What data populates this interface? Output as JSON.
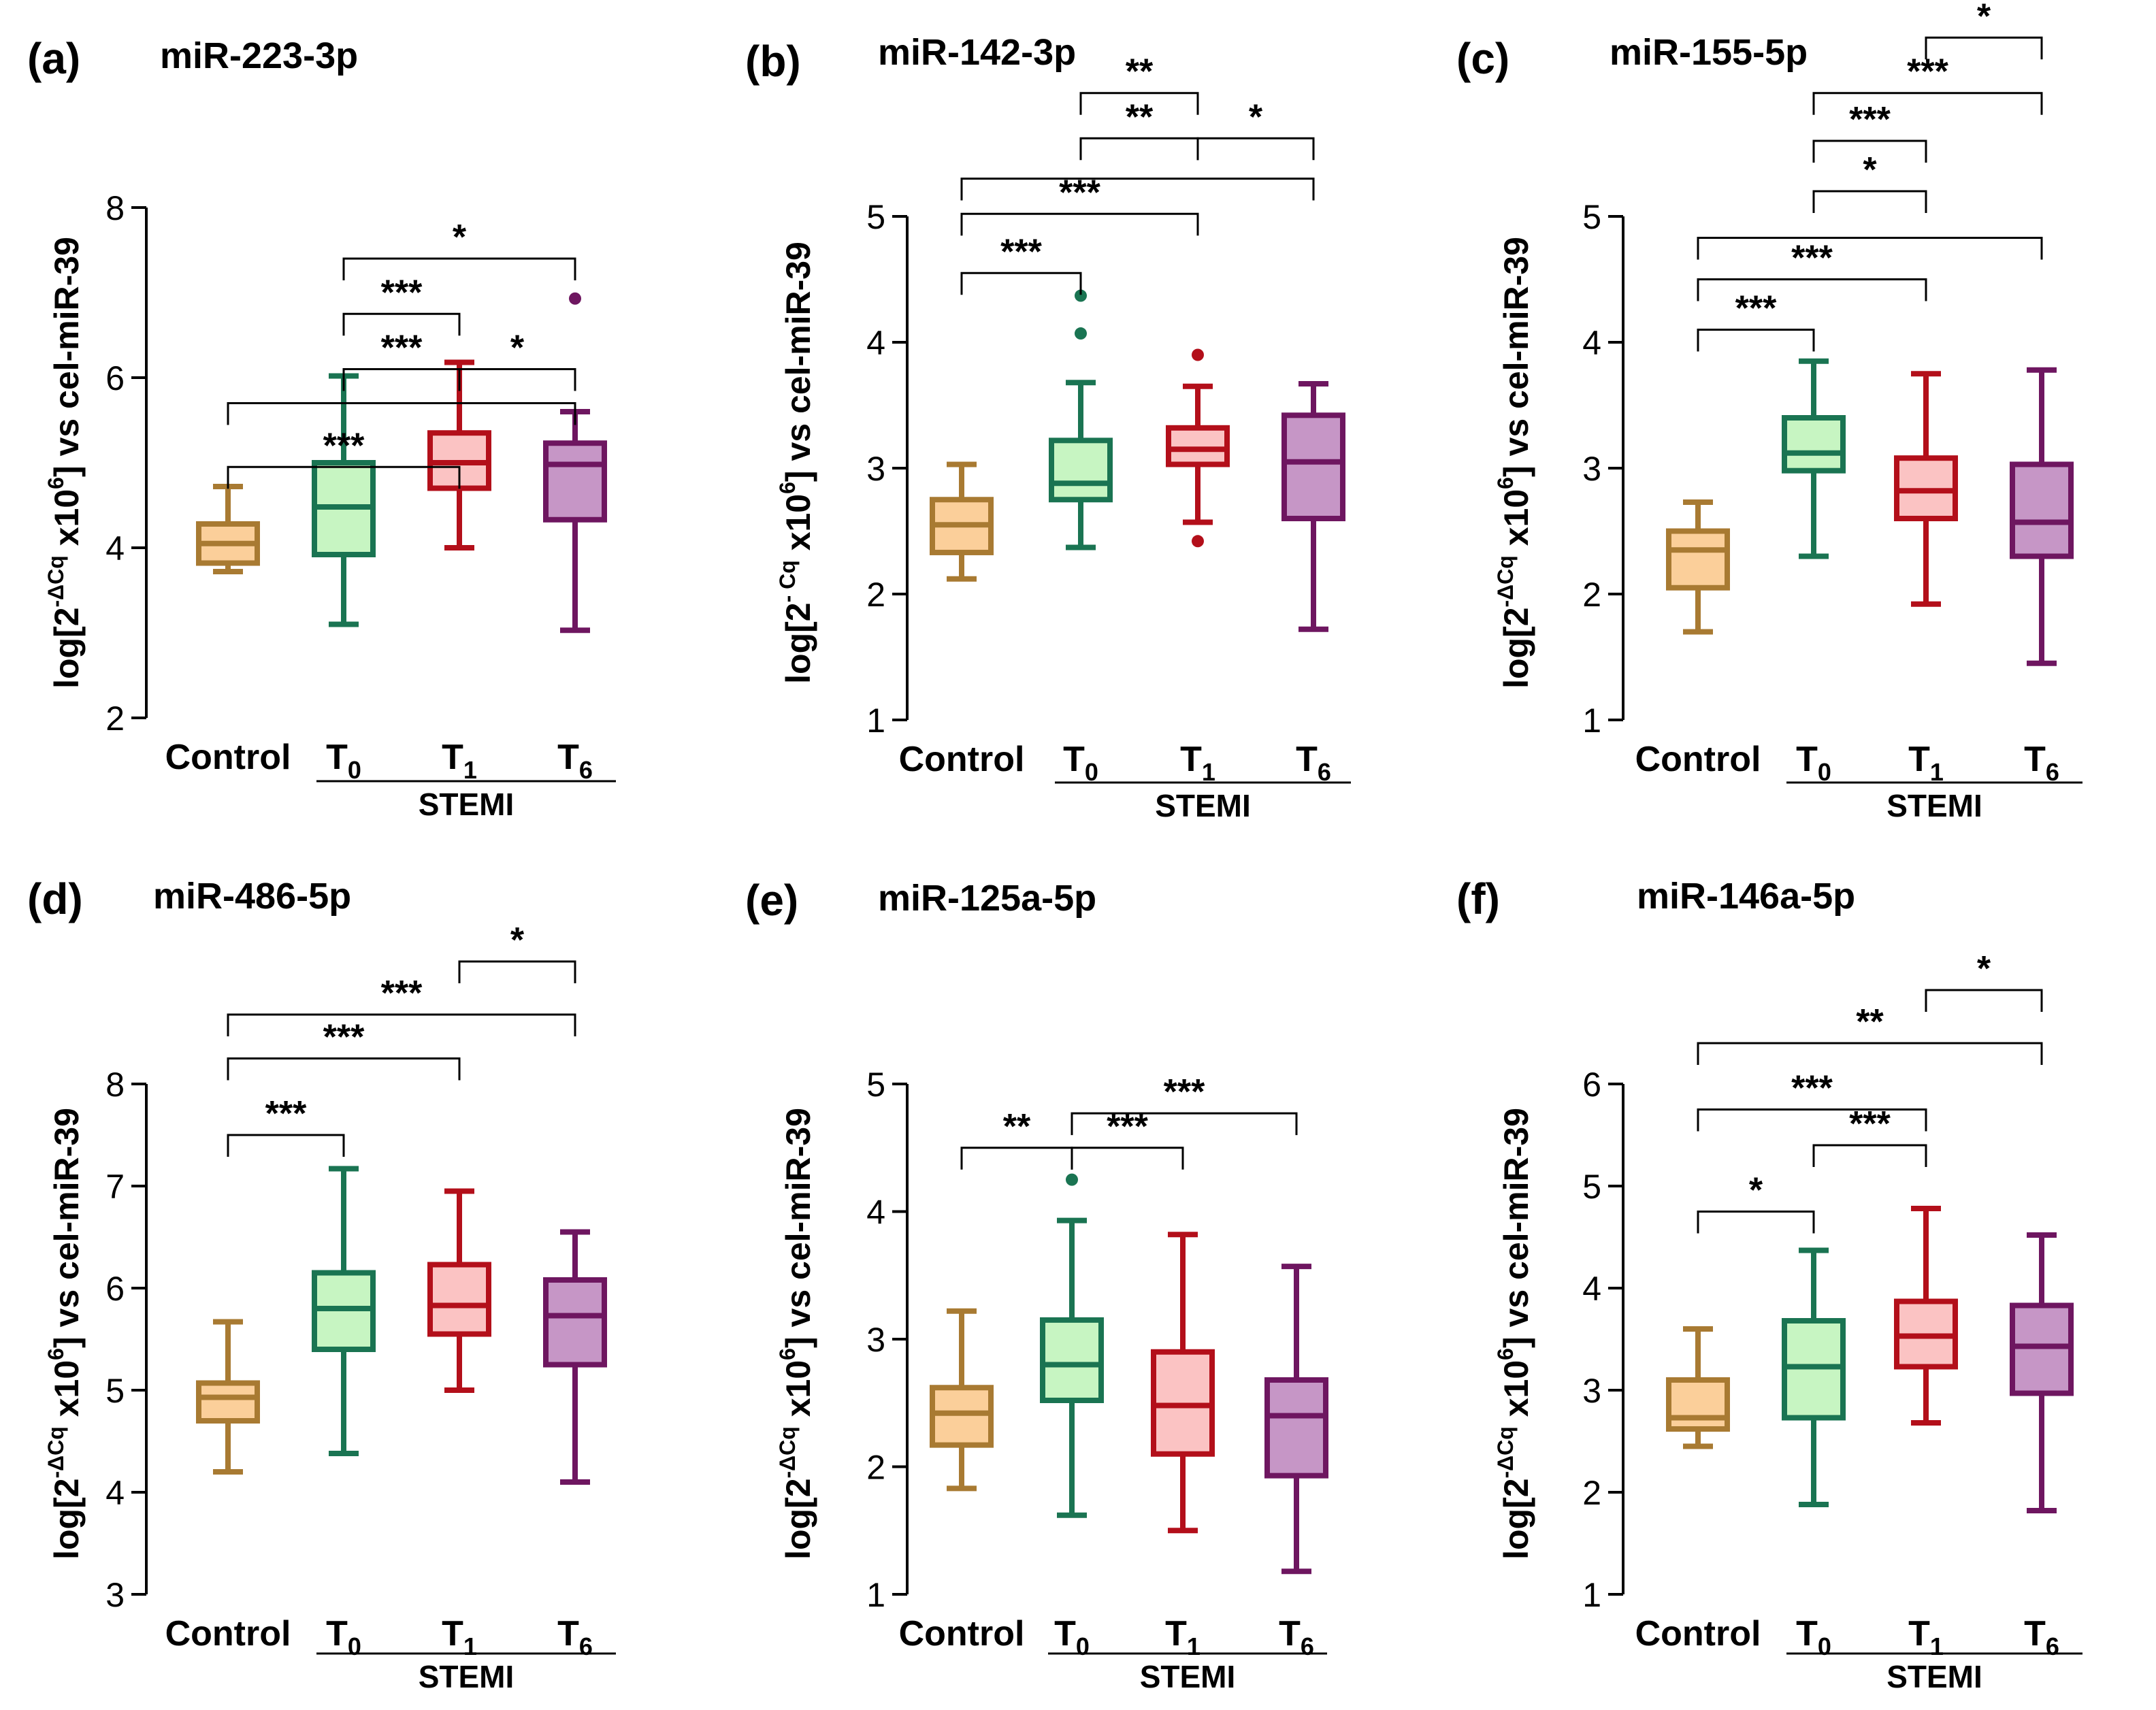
{
  "figure": {
    "group_label": "STEMI"
  },
  "colors": {
    "axis": "#000000",
    "bracket": "#000000",
    "groups": [
      {
        "stroke": "#a87a32",
        "fill": "#fbcf9a"
      },
      {
        "stroke": "#1a7452",
        "fill": "#c7f5c2"
      },
      {
        "stroke": "#b30f1a",
        "fill": "#fbc3c3"
      },
      {
        "stroke": "#6e1660",
        "fill": "#c696c6"
      }
    ]
  },
  "chart_data": [
    {
      "panel": "(a)",
      "title": "miR-223-3p",
      "type": "box",
      "ylabel": {
        "pre": "log[2",
        "sup": "-ΔCq",
        "mid": " x10",
        "sup2": "6",
        "post": "] vs cel-miR-39"
      },
      "ylim": [
        2,
        8
      ],
      "yticks": [
        "2",
        "4",
        "6",
        "8"
      ],
      "categories": [
        {
          "base": "Control",
          "sub": ""
        },
        {
          "base": "T",
          "sub": "0"
        },
        {
          "base": "T",
          "sub": "1"
        },
        {
          "base": "T",
          "sub": "6"
        }
      ],
      "boxes": [
        {
          "min": 3.72,
          "q1": 3.82,
          "median": 4.05,
          "q3": 4.28,
          "max": 4.72,
          "outliers": []
        },
        {
          "min": 3.1,
          "q1": 3.92,
          "median": 4.48,
          "q3": 5.0,
          "max": 6.02,
          "outliers": []
        },
        {
          "min": 4.0,
          "q1": 4.7,
          "median": 5.0,
          "q3": 5.35,
          "max": 6.18,
          "outliers": []
        },
        {
          "min": 3.03,
          "q1": 4.33,
          "median": 4.98,
          "q3": 5.23,
          "max": 5.6,
          "outliers": [
            6.93
          ]
        }
      ],
      "comparisons": [
        {
          "from": 0,
          "to": 2,
          "level": 4.95,
          "label": "***"
        },
        {
          "from": 0,
          "to": 3,
          "level": 5.7,
          "label": ""
        },
        {
          "from": 1,
          "to": 2,
          "level": 6.1,
          "label": "***"
        },
        {
          "from": 2,
          "to": 3,
          "level": 6.1,
          "label": "*"
        },
        {
          "from": 1,
          "to": 2,
          "level": 6.75,
          "label": "***"
        },
        {
          "from": 1,
          "to": 3,
          "level": 7.4,
          "label": "*"
        }
      ]
    },
    {
      "panel": "(b)",
      "title": "miR-142-3p",
      "type": "box",
      "ylabel": {
        "pre": "log[2",
        "sup": "- Cq",
        "mid": " x10",
        "sup2": "6",
        "post": "] vs cel-miR-39"
      },
      "ylim": [
        1,
        5
      ],
      "yticks": [
        "1",
        "2",
        "3",
        "4",
        "5"
      ],
      "categories": [
        {
          "base": "Control",
          "sub": ""
        },
        {
          "base": "T",
          "sub": "0"
        },
        {
          "base": "T",
          "sub": "1"
        },
        {
          "base": "T",
          "sub": "6"
        }
      ],
      "boxes": [
        {
          "min": 2.12,
          "q1": 2.33,
          "median": 2.55,
          "q3": 2.75,
          "max": 3.03,
          "outliers": []
        },
        {
          "min": 2.37,
          "q1": 2.75,
          "median": 2.88,
          "q3": 3.22,
          "max": 3.68,
          "outliers": [
            4.07,
            4.37
          ]
        },
        {
          "min": 2.57,
          "q1": 3.03,
          "median": 3.15,
          "q3": 3.32,
          "max": 3.65,
          "outliers": [
            2.42,
            3.9
          ]
        },
        {
          "min": 1.72,
          "q1": 2.6,
          "median": 3.05,
          "q3": 3.42,
          "max": 3.67,
          "outliers": []
        }
      ],
      "comparisons": [
        {
          "from": 0,
          "to": 1,
          "level": 4.55,
          "label": "***"
        },
        {
          "from": 0,
          "to": 2,
          "level": 5.02,
          "label": "***"
        },
        {
          "from": 0,
          "to": 3,
          "level": 5.3,
          "label": ""
        },
        {
          "from": 1,
          "to": 2,
          "level": 5.62,
          "label": "**"
        },
        {
          "from": 2,
          "to": 3,
          "level": 5.62,
          "label": "*"
        },
        {
          "from": 1,
          "to": 2,
          "level": 5.98,
          "label": "**"
        }
      ]
    },
    {
      "panel": "(c)",
      "title": "miR-155-5p",
      "type": "box",
      "ylabel": {
        "pre": "log[2",
        "sup": "-ΔCq",
        "mid": " x10",
        "sup2": "6",
        "post": "] vs cel-miR-39"
      },
      "ylim": [
        1,
        5
      ],
      "yticks": [
        "1",
        "2",
        "3",
        "4",
        "5"
      ],
      "categories": [
        {
          "base": "Control",
          "sub": ""
        },
        {
          "base": "T",
          "sub": "0"
        },
        {
          "base": "T",
          "sub": "1"
        },
        {
          "base": "T",
          "sub": "6"
        }
      ],
      "boxes": [
        {
          "min": 1.7,
          "q1": 2.05,
          "median": 2.35,
          "q3": 2.5,
          "max": 2.73,
          "outliers": []
        },
        {
          "min": 2.3,
          "q1": 2.98,
          "median": 3.12,
          "q3": 3.4,
          "max": 3.85,
          "outliers": []
        },
        {
          "min": 1.92,
          "q1": 2.6,
          "median": 2.82,
          "q3": 3.08,
          "max": 3.75,
          "outliers": []
        },
        {
          "min": 1.45,
          "q1": 2.3,
          "median": 2.57,
          "q3": 3.03,
          "max": 3.78,
          "outliers": []
        }
      ],
      "comparisons": [
        {
          "from": 0,
          "to": 1,
          "level": 4.1,
          "label": "***"
        },
        {
          "from": 0,
          "to": 2,
          "level": 4.5,
          "label": "***"
        },
        {
          "from": 0,
          "to": 3,
          "level": 4.83,
          "label": ""
        },
        {
          "from": 1,
          "to": 2,
          "level": 5.2,
          "label": "*"
        },
        {
          "from": 1,
          "to": 2,
          "level": 5.6,
          "label": "***"
        },
        {
          "from": 1,
          "to": 3,
          "level": 5.98,
          "label": "***"
        },
        {
          "from": 2,
          "to": 3,
          "level": 6.42,
          "label": "*"
        }
      ]
    },
    {
      "panel": "(d)",
      "title": "miR-486-5p",
      "type": "box",
      "ylabel": {
        "pre": "log[2",
        "sup": "-ΔCq",
        "mid": " x10",
        "sup2": "6",
        "post": "] vs cel-miR-39"
      },
      "ylim": [
        3,
        8
      ],
      "yticks": [
        "3",
        "4",
        "5",
        "6",
        "7",
        "8"
      ],
      "categories": [
        {
          "base": "Control",
          "sub": ""
        },
        {
          "base": "T",
          "sub": "0"
        },
        {
          "base": "T",
          "sub": "1"
        },
        {
          "base": "T",
          "sub": "6"
        }
      ],
      "boxes": [
        {
          "min": 4.2,
          "q1": 4.7,
          "median": 4.93,
          "q3": 5.07,
          "max": 5.67,
          "outliers": []
        },
        {
          "min": 4.38,
          "q1": 5.4,
          "median": 5.8,
          "q3": 6.15,
          "max": 7.17,
          "outliers": []
        },
        {
          "min": 5.0,
          "q1": 5.55,
          "median": 5.83,
          "q3": 6.23,
          "max": 6.95,
          "outliers": []
        },
        {
          "min": 4.1,
          "q1": 5.25,
          "median": 5.73,
          "q3": 6.08,
          "max": 6.55,
          "outliers": []
        }
      ],
      "comparisons": [
        {
          "from": 0,
          "to": 1,
          "level": 7.5,
          "label": "***"
        },
        {
          "from": 0,
          "to": 2,
          "level": 8.25,
          "label": "***"
        },
        {
          "from": 0,
          "to": 3,
          "level": 8.68,
          "label": "***"
        },
        {
          "from": 2,
          "to": 3,
          "level": 9.2,
          "label": "*"
        }
      ]
    },
    {
      "panel": "(e)",
      "title": "miR-125a-5p",
      "type": "box",
      "ylabel": {
        "pre": "log[2",
        "sup": "-ΔCq",
        "mid": " x10",
        "sup2": "6",
        "post": "] vs cel-miR-39"
      },
      "ylim": [
        1,
        5
      ],
      "yticks": [
        "1",
        "2",
        "3",
        "4",
        "5"
      ],
      "categories": [
        {
          "base": "Control",
          "sub": ""
        },
        {
          "base": "T",
          "sub": "0"
        },
        {
          "base": "T",
          "sub": "1"
        },
        {
          "base": "T",
          "sub": "6"
        }
      ],
      "boxes": [
        {
          "min": 1.83,
          "q1": 2.17,
          "median": 2.42,
          "q3": 2.62,
          "max": 3.22,
          "outliers": []
        },
        {
          "min": 1.62,
          "q1": 2.52,
          "median": 2.8,
          "q3": 3.15,
          "max": 3.93,
          "outliers": [
            4.25
          ]
        },
        {
          "min": 1.5,
          "q1": 2.1,
          "median": 2.48,
          "q3": 2.9,
          "max": 3.82,
          "outliers": []
        },
        {
          "min": 1.18,
          "q1": 1.93,
          "median": 2.4,
          "q3": 2.68,
          "max": 3.57,
          "outliers": []
        }
      ],
      "comparisons": [
        {
          "from": 0,
          "to": 1,
          "level": 4.5,
          "label": "**"
        },
        {
          "from": 1,
          "to": 2,
          "level": 4.5,
          "label": "***"
        },
        {
          "from": 1,
          "to": 3,
          "level": 4.77,
          "label": "***"
        }
      ]
    },
    {
      "panel": "(f)",
      "title": "miR-146a-5p",
      "type": "box",
      "ylabel": {
        "pre": "log[2",
        "sup": "-ΔCq",
        "mid": " x10",
        "sup2": "6",
        "post": "] vs cel-miR-39"
      },
      "ylim": [
        1,
        6
      ],
      "yticks": [
        "1",
        "2",
        "3",
        "4",
        "5",
        "6"
      ],
      "categories": [
        {
          "base": "Control",
          "sub": ""
        },
        {
          "base": "T",
          "sub": "0"
        },
        {
          "base": "T",
          "sub": "1"
        },
        {
          "base": "T",
          "sub": "6"
        }
      ],
      "boxes": [
        {
          "min": 2.45,
          "q1": 2.62,
          "median": 2.73,
          "q3": 3.1,
          "max": 3.6,
          "outliers": []
        },
        {
          "min": 1.88,
          "q1": 2.73,
          "median": 3.23,
          "q3": 3.68,
          "max": 4.37,
          "outliers": []
        },
        {
          "min": 2.68,
          "q1": 3.23,
          "median": 3.53,
          "q3": 3.87,
          "max": 4.78,
          "outliers": []
        },
        {
          "min": 1.82,
          "q1": 2.97,
          "median": 3.43,
          "q3": 3.83,
          "max": 4.52,
          "outliers": []
        }
      ],
      "comparisons": [
        {
          "from": 0,
          "to": 1,
          "level": 4.75,
          "label": "*"
        },
        {
          "from": 1,
          "to": 2,
          "level": 5.4,
          "label": "***"
        },
        {
          "from": 0,
          "to": 2,
          "level": 5.75,
          "label": "***"
        },
        {
          "from": 0,
          "to": 3,
          "level": 6.4,
          "label": "**"
        },
        {
          "from": 2,
          "to": 3,
          "level": 6.92,
          "label": "*"
        }
      ]
    }
  ]
}
